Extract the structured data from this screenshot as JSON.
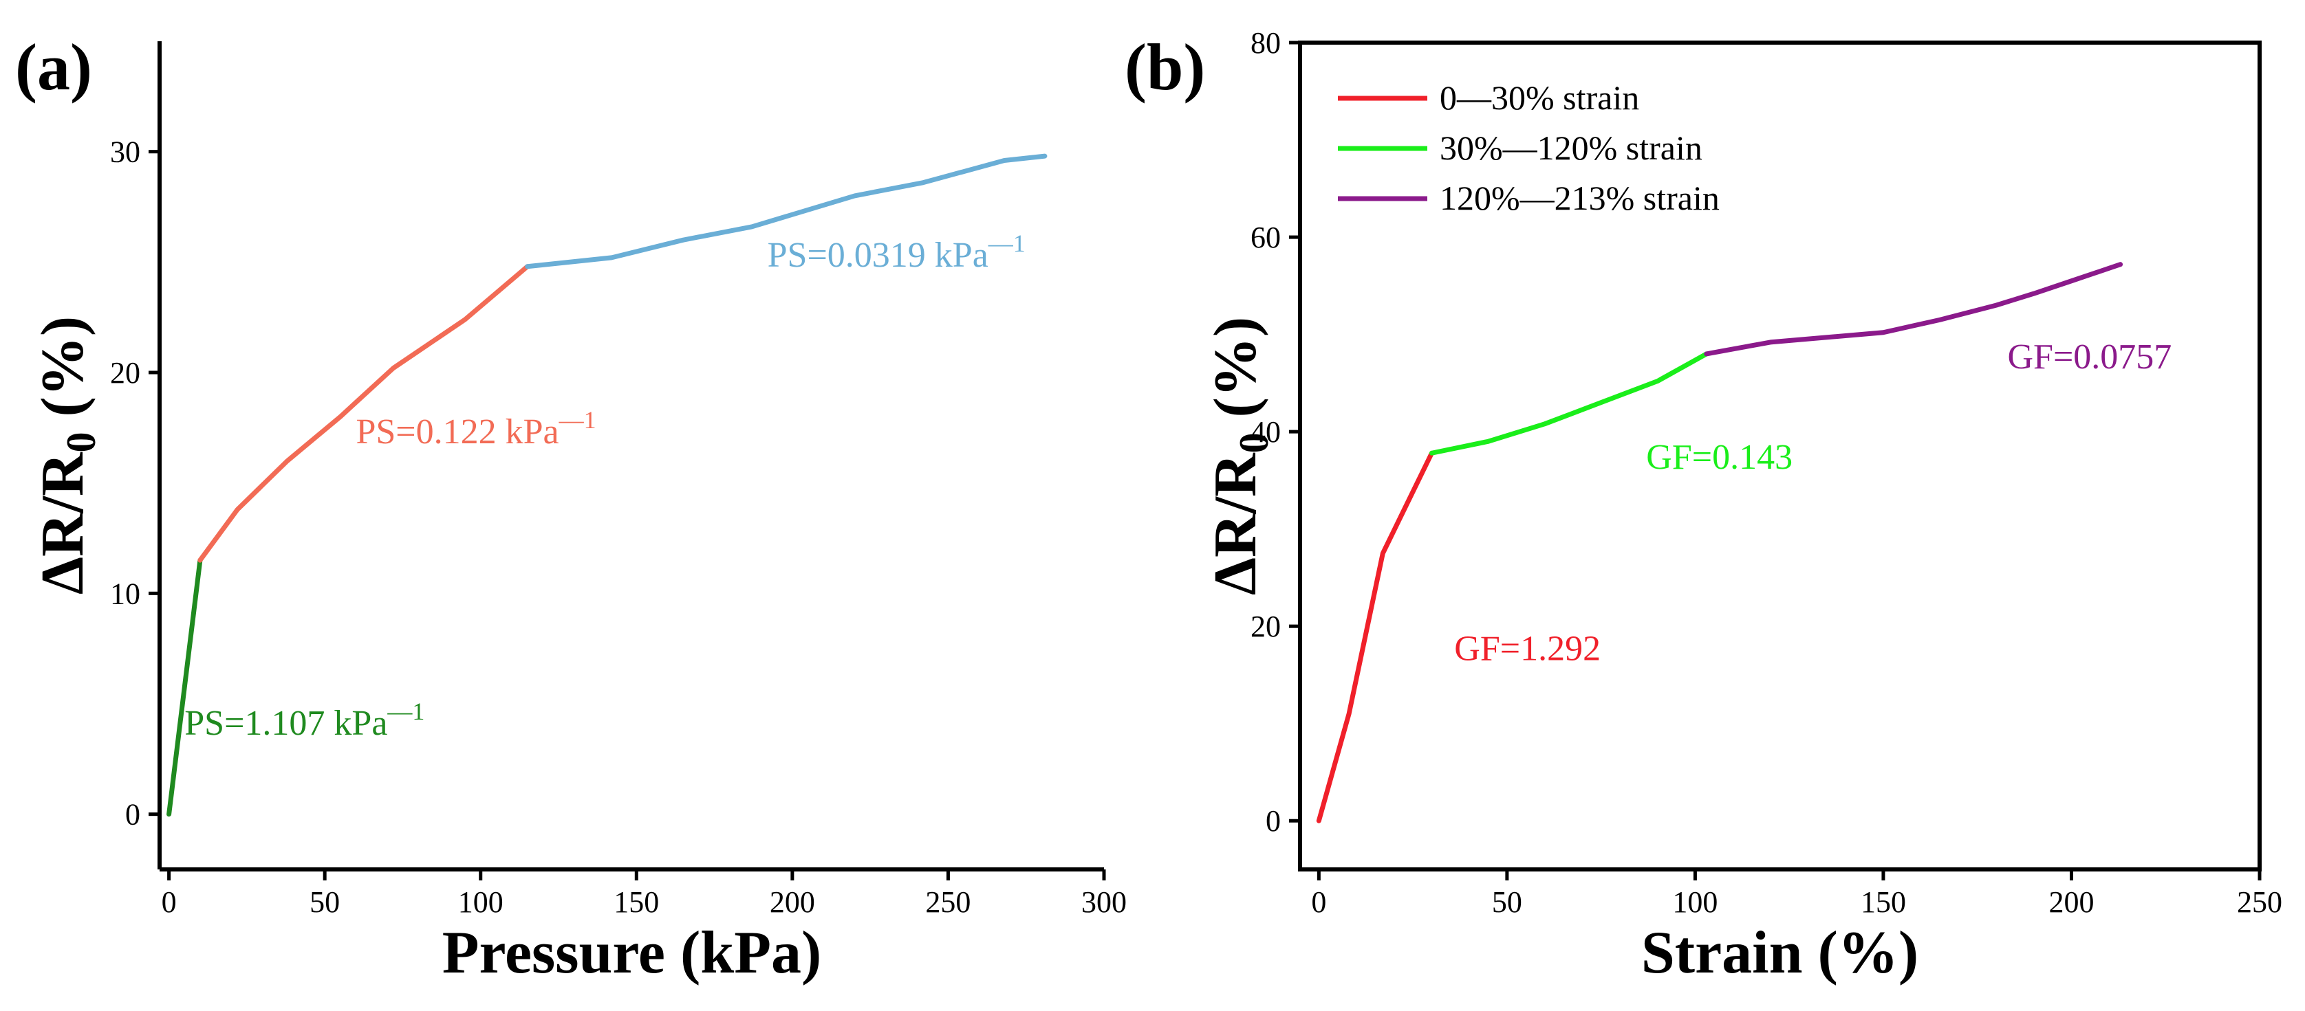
{
  "chart_data": [
    {
      "panel_label": "(a)",
      "type": "line",
      "xlabel": "Pressure (kPa)",
      "ylabel_main": "ΔR/R",
      "ylabel_sub": "0",
      "ylabel_unit": " (%)",
      "xlim": [
        -3,
        300
      ],
      "ylim": [
        -2.5,
        35
      ],
      "xticks": [
        0,
        50,
        100,
        150,
        200,
        250,
        300
      ],
      "yticks": [
        0,
        10,
        20,
        30
      ],
      "series": [
        {
          "name": "PS=1.107 kPa",
          "color": "#1f8a1f",
          "x": [
            0,
            10
          ],
          "y": [
            0,
            11.5
          ]
        },
        {
          "name": "PS=0.122 kPa",
          "color": "#f26b55",
          "x": [
            10,
            22,
            38,
            55,
            72,
            95,
            115
          ],
          "y": [
            11.5,
            13.8,
            16.0,
            18.0,
            20.2,
            22.4,
            24.8
          ]
        },
        {
          "name": "PS=0.0319 kPa",
          "color": "#6aaed6",
          "x": [
            115,
            142,
            165,
            187,
            220,
            242,
            268,
            281
          ],
          "y": [
            24.8,
            25.2,
            26.0,
            26.6,
            28.0,
            28.6,
            29.6,
            29.8
          ]
        }
      ],
      "annotations": [
        {
          "text": "PS=1.107 kPa",
          "sup": "—1",
          "color": "#1f8a1f",
          "x": 5,
          "y": 3.6
        },
        {
          "text": "PS=0.122 kPa",
          "sup": "—1",
          "color": "#f26b55",
          "x": 60,
          "y": 16.8
        },
        {
          "text": "PS=0.0319 kPa",
          "sup": "—1",
          "color": "#6aaed6",
          "x": 192,
          "y": 24.8
        }
      ]
    },
    {
      "panel_label": "(b)",
      "type": "line",
      "xlabel": "Strain (%)",
      "ylabel_main": "ΔR/R",
      "ylabel_sub": "0",
      "ylabel_unit": " (%)",
      "xlim": [
        -5,
        250
      ],
      "ylim": [
        -5,
        80
      ],
      "xticks": [
        0,
        50,
        100,
        150,
        200,
        250
      ],
      "yticks": [
        0,
        20,
        40,
        60,
        80
      ],
      "legend_position": "top-left",
      "series": [
        {
          "name": "0—30% strain",
          "color": "#f0202a",
          "x": [
            0,
            8,
            17,
            30
          ],
          "y": [
            0,
            11,
            27.5,
            37.8
          ]
        },
        {
          "name": "30%—120% strain",
          "color": "#1aee1a",
          "x": [
            30,
            45,
            60,
            75,
            90,
            103
          ],
          "y": [
            37.8,
            39.0,
            40.8,
            43.0,
            45.2,
            48.0
          ]
        },
        {
          "name": "120%—213% strain",
          "color": "#8b1a8b",
          "x": [
            103,
            120,
            150,
            165,
            180,
            190,
            200,
            213
          ],
          "y": [
            48.0,
            49.2,
            50.2,
            51.5,
            53.0,
            54.2,
            55.5,
            57.2
          ]
        }
      ],
      "annotations": [
        {
          "text": "GF=1.292",
          "color": "#f0202a",
          "x": 36,
          "y": 16.5
        },
        {
          "text": "GF=0.143",
          "color": "#1aee1a",
          "x": 87,
          "y": 36.2
        },
        {
          "text": "GF=0.0757",
          "color": "#8b1a8b",
          "x": 183,
          "y": 46.5
        }
      ]
    }
  ]
}
